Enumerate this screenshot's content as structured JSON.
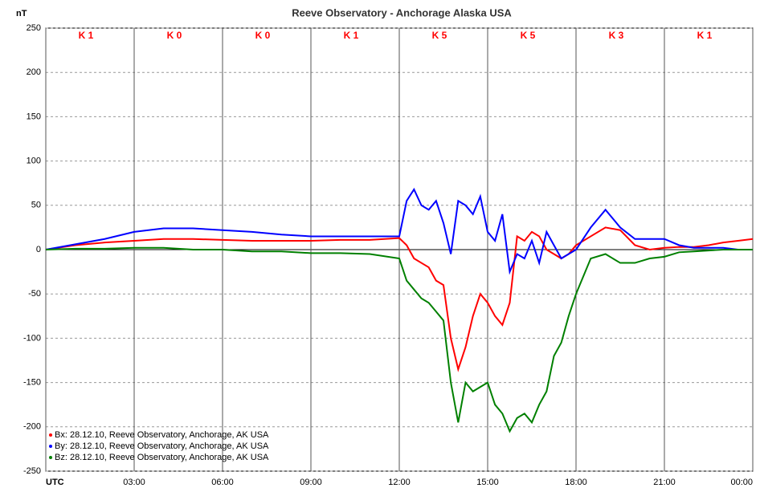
{
  "chart_data": {
    "type": "line",
    "title": "Reeve Observatory - Anchorage Alaska USA",
    "y_label": "nT",
    "x": [
      0,
      1,
      2,
      3,
      4,
      5,
      6,
      7,
      8,
      9,
      10,
      11,
      12,
      12.25,
      12.5,
      12.75,
      13,
      13.25,
      13.5,
      13.75,
      14,
      14.25,
      14.5,
      14.75,
      15,
      15.25,
      15.5,
      15.75,
      16,
      16.25,
      16.5,
      16.75,
      17,
      17.25,
      17.5,
      17.75,
      18,
      18.5,
      19,
      19.5,
      20,
      20.5,
      21,
      21.5,
      22,
      22.5,
      23,
      23.5,
      24
    ],
    "series": [
      {
        "name": "Bx: 28.12.10, Reeve Observatory, Anchorage, AK  USA",
        "color": "#ff0000",
        "values": [
          0,
          5,
          8,
          10,
          12,
          12,
          11,
          10,
          10,
          10,
          11,
          11,
          13,
          5,
          -10,
          -15,
          -20,
          -35,
          -40,
          -100,
          -135,
          -110,
          -75,
          -50,
          -60,
          -75,
          -85,
          -60,
          15,
          10,
          20,
          15,
          0,
          -5,
          -10,
          -5,
          5,
          15,
          25,
          22,
          5,
          0,
          2,
          3,
          3,
          5,
          8,
          10,
          12
        ]
      },
      {
        "name": "By: 28.12.10, Reeve Observatory, Anchorage, AK  USA",
        "color": "#0000ff",
        "values": [
          0,
          6,
          12,
          20,
          24,
          24,
          22,
          20,
          17,
          15,
          15,
          15,
          15,
          55,
          68,
          50,
          45,
          55,
          30,
          -5,
          55,
          50,
          40,
          60,
          20,
          10,
          40,
          -25,
          -5,
          -10,
          10,
          -15,
          20,
          5,
          -10,
          -5,
          0,
          25,
          45,
          25,
          12,
          12,
          12,
          5,
          2,
          2,
          2,
          0,
          0
        ]
      },
      {
        "name": "Bz: 28.12.10, Reeve Observatory, Anchorage, AK  USA",
        "color": "#008000",
        "values": [
          0,
          1,
          1,
          2,
          2,
          0,
          0,
          -2,
          -2,
          -4,
          -4,
          -5,
          -10,
          -35,
          -45,
          -55,
          -60,
          -70,
          -80,
          -150,
          -195,
          -150,
          -160,
          -155,
          -150,
          -175,
          -185,
          -205,
          -190,
          -185,
          -195,
          -175,
          -160,
          -120,
          -105,
          -75,
          -50,
          -10,
          -5,
          -15,
          -15,
          -10,
          -8,
          -3,
          -2,
          -1,
          0,
          0,
          0
        ]
      }
    ],
    "k_index": [
      "K 1",
      "K 0",
      "K 0",
      "K 1",
      "K 5",
      "K 5",
      "K 3",
      "K 1"
    ],
    "xlim": [
      0,
      24
    ],
    "xticks": [
      {
        "value": 0,
        "label": "UTC"
      },
      {
        "value": 3,
        "label": "03:00"
      },
      {
        "value": 6,
        "label": "06:00"
      },
      {
        "value": 9,
        "label": "09:00"
      },
      {
        "value": 12,
        "label": "12:00"
      },
      {
        "value": 15,
        "label": "15:00"
      },
      {
        "value": 18,
        "label": "18:00"
      },
      {
        "value": 21,
        "label": "21:00"
      },
      {
        "value": 24,
        "label": "00:00"
      }
    ],
    "ylim": [
      -250,
      250
    ],
    "yticks": [
      -250,
      -200,
      -150,
      -100,
      -50,
      0,
      50,
      100,
      150,
      200,
      250
    ],
    "grid": true,
    "legend": "lower left"
  }
}
